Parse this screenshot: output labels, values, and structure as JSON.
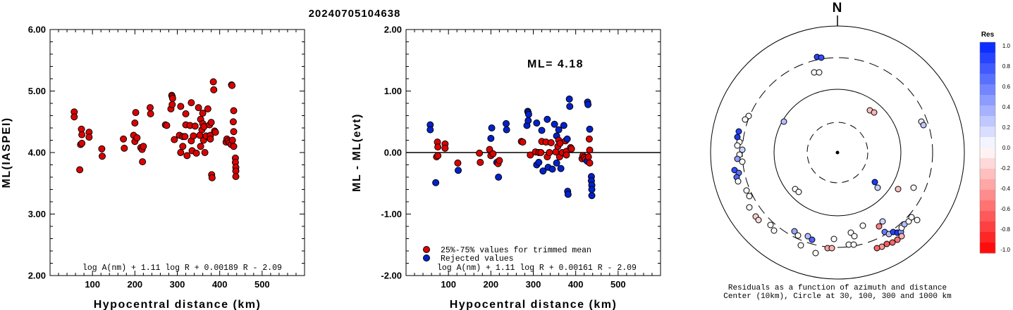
{
  "page_title": "20240705104638",
  "chart_data": [
    {
      "type": "scatter",
      "ylabel": "ML(IASPEI)",
      "xlabel": "Hypocentral distance (km)",
      "xlim": [
        0,
        600
      ],
      "ylim": [
        2.0,
        6.0
      ],
      "x_ticks": [
        "100",
        "200",
        "300",
        "400",
        "500"
      ],
      "y_ticks": [
        "2.00",
        "3.00",
        "4.00",
        "5.00",
        "6.00"
      ],
      "formula": "log A(nm) + 1.11 log R + 0.00189 R - 2.09",
      "point_color": "#dd0000",
      "points": [
        [
          57,
          4.66
        ],
        [
          57,
          4.58
        ],
        [
          70,
          3.72
        ],
        [
          72,
          4.13
        ],
        [
          74,
          4.38
        ],
        [
          75,
          4.15
        ],
        [
          75,
          4.29
        ],
        [
          92,
          4.33
        ],
        [
          92,
          4.25
        ],
        [
          122,
          4.06
        ],
        [
          123,
          3.94
        ],
        [
          173,
          4.22
        ],
        [
          175,
          4.07
        ],
        [
          197,
          4.28
        ],
        [
          200,
          4.18
        ],
        [
          200,
          4.48
        ],
        [
          202,
          4.65
        ],
        [
          205,
          4.24
        ],
        [
          214,
          4.08
        ],
        [
          217,
          4.05
        ],
        [
          218,
          3.85
        ],
        [
          220,
          4.1
        ],
        [
          236,
          4.73
        ],
        [
          237,
          4.63
        ],
        [
          272,
          4.45
        ],
        [
          275,
          4.44
        ],
        [
          285,
          4.71
        ],
        [
          287,
          4.93
        ],
        [
          288,
          4.91
        ],
        [
          288,
          4.78
        ],
        [
          289,
          4.88
        ],
        [
          293,
          4.21
        ],
        [
          305,
          4.28
        ],
        [
          308,
          4.75
        ],
        [
          308,
          4.0
        ],
        [
          313,
          4.26
        ],
        [
          313,
          4.1
        ],
        [
          318,
          4.26
        ],
        [
          320,
          4.45
        ],
        [
          320,
          4.63
        ],
        [
          323,
          3.95
        ],
        [
          330,
          4.44
        ],
        [
          333,
          4.81
        ],
        [
          333,
          4.19
        ],
        [
          335,
          4.03
        ],
        [
          338,
          4.27
        ],
        [
          342,
          4.43
        ],
        [
          345,
          3.99
        ],
        [
          350,
          4.73
        ],
        [
          353,
          4.28
        ],
        [
          355,
          4.1
        ],
        [
          355,
          4.54
        ],
        [
          358,
          4.37
        ],
        [
          360,
          4.64
        ],
        [
          360,
          4.47
        ],
        [
          362,
          4.2
        ],
        [
          363,
          4.42
        ],
        [
          365,
          4.0
        ],
        [
          368,
          4.27
        ],
        [
          372,
          4.71
        ],
        [
          376,
          4.45
        ],
        [
          378,
          4.28
        ],
        [
          378,
          4.22
        ],
        [
          380,
          4.49
        ],
        [
          381,
          3.64
        ],
        [
          382,
          3.59
        ],
        [
          385,
          5.15
        ],
        [
          386,
          5.02
        ],
        [
          388,
          4.35
        ],
        [
          390,
          4.33
        ],
        [
          415,
          4.17
        ],
        [
          417,
          4.22
        ],
        [
          420,
          4.19
        ],
        [
          423,
          4.16
        ],
        [
          427,
          4.13
        ],
        [
          428,
          5.1
        ],
        [
          429,
          5.09
        ],
        [
          430,
          4.2
        ],
        [
          432,
          4.5
        ],
        [
          433,
          4.68
        ],
        [
          433,
          4.34
        ],
        [
          433,
          4.1
        ],
        [
          437,
          3.91
        ],
        [
          437,
          3.84
        ],
        [
          438,
          3.76
        ],
        [
          438,
          3.7
        ],
        [
          438,
          3.61
        ]
      ]
    },
    {
      "type": "scatter",
      "ylabel": "ML - ML(evt)",
      "xlabel": "Hypocentral distance (km)",
      "xlim": [
        0,
        600
      ],
      "ylim": [
        -2.0,
        2.0
      ],
      "x_ticks": [
        "100",
        "200",
        "300",
        "400",
        "500"
      ],
      "y_ticks": [
        "-2.00",
        "-1.00",
        "0.00",
        "1.00",
        "2.00"
      ],
      "zero_line": 0.0,
      "annotation": "ML= 4.18",
      "legend": [
        {
          "label": "25%-75% values for trimmed mean",
          "color": "#dd0000"
        },
        {
          "label": "Rejected values",
          "color": "#0022cc"
        }
      ],
      "formula": "log A(nm) + 1.11 log R + 0.00161 R - 2.09",
      "points": [
        [
          57,
          0.45,
          "b"
        ],
        [
          57,
          0.37,
          "b"
        ],
        [
          70,
          -0.49,
          "b"
        ],
        [
          72,
          -0.07,
          "r"
        ],
        [
          74,
          0.17,
          "r"
        ],
        [
          75,
          0.09,
          "r"
        ],
        [
          75,
          -0.05,
          "r"
        ],
        [
          92,
          0.14,
          "r"
        ],
        [
          92,
          0.07,
          "r"
        ],
        [
          122,
          -0.17,
          "r"
        ],
        [
          123,
          -0.29,
          "b"
        ],
        [
          173,
          -0.01,
          "r"
        ],
        [
          175,
          -0.16,
          "r"
        ],
        [
          197,
          0.05,
          "r"
        ],
        [
          200,
          -0.05,
          "r"
        ],
        [
          200,
          0.23,
          "b"
        ],
        [
          202,
          0.4,
          "b"
        ],
        [
          205,
          -0.02,
          "r"
        ],
        [
          214,
          -0.16,
          "b"
        ],
        [
          217,
          -0.18,
          "r"
        ],
        [
          218,
          -0.4,
          "b"
        ],
        [
          220,
          -0.13,
          "r"
        ],
        [
          236,
          0.47,
          "b"
        ],
        [
          237,
          0.37,
          "b"
        ],
        [
          272,
          0.18,
          "r"
        ],
        [
          275,
          0.17,
          "r"
        ],
        [
          285,
          0.44,
          "b"
        ],
        [
          287,
          0.67,
          "b"
        ],
        [
          288,
          0.65,
          "b"
        ],
        [
          288,
          0.52,
          "b"
        ],
        [
          289,
          0.62,
          "b"
        ],
        [
          293,
          -0.04,
          "r"
        ],
        [
          305,
          0.01,
          "r"
        ],
        [
          308,
          0.48,
          "b"
        ],
        [
          308,
          -0.2,
          "b"
        ],
        [
          313,
          0.0,
          "r"
        ],
        [
          313,
          -0.16,
          "b"
        ],
        [
          318,
          0.0,
          "r"
        ],
        [
          320,
          0.18,
          "r"
        ],
        [
          320,
          0.36,
          "b"
        ],
        [
          323,
          -0.3,
          "b"
        ],
        [
          330,
          0.17,
          "r"
        ],
        [
          333,
          0.54,
          "b"
        ],
        [
          333,
          -0.07,
          "r"
        ],
        [
          335,
          -0.24,
          "b"
        ],
        [
          338,
          0.0,
          "r"
        ],
        [
          342,
          0.16,
          "r"
        ],
        [
          345,
          -0.27,
          "b"
        ],
        [
          350,
          0.46,
          "b"
        ],
        [
          353,
          0.01,
          "r"
        ],
        [
          355,
          -0.17,
          "b"
        ],
        [
          355,
          0.27,
          "b"
        ],
        [
          358,
          0.1,
          "r"
        ],
        [
          360,
          0.37,
          "b"
        ],
        [
          360,
          0.2,
          "r"
        ],
        [
          362,
          -0.07,
          "r"
        ],
        [
          363,
          0.15,
          "r"
        ],
        [
          365,
          -0.26,
          "b"
        ],
        [
          368,
          0.0,
          "r"
        ],
        [
          372,
          0.44,
          "b"
        ],
        [
          376,
          0.19,
          "r"
        ],
        [
          378,
          0.02,
          "r"
        ],
        [
          378,
          -0.04,
          "r"
        ],
        [
          380,
          0.22,
          "b"
        ],
        [
          381,
          -0.63,
          "b"
        ],
        [
          382,
          -0.68,
          "b"
        ],
        [
          385,
          0.87,
          "b"
        ],
        [
          386,
          0.75,
          "b"
        ],
        [
          388,
          0.08,
          "r"
        ],
        [
          390,
          0.06,
          "r"
        ],
        [
          415,
          -0.1,
          "r"
        ],
        [
          417,
          -0.05,
          "r"
        ],
        [
          420,
          -0.08,
          "r"
        ],
        [
          423,
          -0.11,
          "r"
        ],
        [
          427,
          -0.14,
          "b"
        ],
        [
          428,
          0.82,
          "b"
        ],
        [
          429,
          0.78,
          "b"
        ],
        [
          430,
          -0.07,
          "r"
        ],
        [
          432,
          0.22,
          "r"
        ],
        [
          433,
          0.38,
          "b"
        ],
        [
          433,
          0.04,
          "r"
        ],
        [
          433,
          -0.17,
          "r"
        ],
        [
          437,
          -0.39,
          "b"
        ],
        [
          437,
          -0.46,
          "b"
        ],
        [
          438,
          -0.53,
          "b"
        ],
        [
          438,
          -0.6,
          "b"
        ],
        [
          438,
          -0.7,
          "b"
        ]
      ]
    },
    {
      "type": "polar-scatter",
      "north_label": "N",
      "caption_line1": "Residuals as a function of azimuth and distance",
      "caption_line2": "Center (10km), Circle at 30, 100, 300 and 1000 km",
      "rings_km": [
        30,
        100,
        300,
        1000
      ],
      "colorbar_title": "Res",
      "colorbar_ticks": [
        "1.0",
        "0.8",
        "0.6",
        "0.4",
        "0.2",
        "0.0",
        "-0.2",
        "-0.4",
        "-0.6",
        "-0.8",
        "-1.0"
      ],
      "points": [
        [
          1159,
          81,
          0.85
        ],
        [
          1165,
          82,
          0.8
        ],
        [
          1155,
          103,
          0.0
        ],
        [
          1162,
          103,
          0.0
        ],
        [
          1234,
          157,
          -0.25
        ],
        [
          1240,
          160,
          -0.3
        ],
        [
          1307,
          173,
          0.1
        ],
        [
          1310,
          178,
          0.25
        ],
        [
          1062,
          165,
          0.0
        ],
        [
          1057,
          170,
          0.0
        ],
        [
          1112,
          173,
          0.3
        ],
        [
          1048,
          187,
          0.85
        ],
        [
          1046,
          195,
          0.9
        ],
        [
          1049,
          202,
          0.0
        ],
        [
          1046,
          207,
          0.0
        ],
        [
          1053,
          213,
          0.2
        ],
        [
          1049,
          220,
          0.0
        ],
        [
          1046,
          226,
          0.45
        ],
        [
          1053,
          230,
          0.0
        ],
        [
          1042,
          242,
          0.8
        ],
        [
          1048,
          246,
          0.65
        ],
        [
          1045,
          252,
          0.7
        ],
        [
          1047,
          258,
          0.0
        ],
        [
          1059,
          271,
          0.0
        ],
        [
          1063,
          279,
          0.0
        ],
        [
          1128,
          269,
          0.0
        ],
        [
          1133,
          273,
          0.0
        ],
        [
          1241,
          259,
          0.9
        ],
        [
          1245,
          267,
          0.2
        ],
        [
          1274,
          269,
          -0.25
        ],
        [
          1296,
          267,
          0.0
        ],
        [
          1063,
          295,
          0.0
        ],
        [
          1072,
          308,
          -0.2
        ],
        [
          1076,
          313,
          -0.15
        ],
        [
          1093,
          320,
          0.0
        ],
        [
          1098,
          328,
          0.0
        ],
        [
          1127,
          329,
          0.4
        ],
        [
          1132,
          335,
          0.0
        ],
        [
          1146,
          336,
          0.3
        ],
        [
          1152,
          341,
          0.7
        ],
        [
          1136,
          349,
          0.0
        ],
        [
          1183,
          340,
          0.0
        ],
        [
          1207,
          331,
          0.0
        ],
        [
          1212,
          336,
          0.0
        ],
        [
          1224,
          321,
          0.0
        ],
        [
          1247,
          322,
          -0.5
        ],
        [
          1252,
          315,
          0.2
        ],
        [
          1255,
          330,
          0.6
        ],
        [
          1261,
          333,
          0.3
        ],
        [
          1267,
          330,
          0.85
        ],
        [
          1273,
          331,
          0.9
        ],
        [
          1278,
          330,
          0.5
        ],
        [
          1279,
          324,
          0.0
        ],
        [
          1283,
          319,
          0.3
        ],
        [
          1289,
          315,
          0.0
        ],
        [
          1293,
          309,
          0.0
        ],
        [
          1301,
          313,
          0.0
        ],
        [
          1279,
          336,
          -0.3
        ],
        [
          1273,
          341,
          -0.55
        ],
        [
          1266,
          345,
          -0.6
        ],
        [
          1258,
          347,
          -0.65
        ],
        [
          1251,
          351,
          -0.4
        ],
        [
          1244,
          353,
          -0.6
        ],
        [
          1204,
          348,
          0.0
        ],
        [
          1211,
          348,
          0.0
        ],
        [
          1174,
          353,
          -0.35
        ],
        [
          1180,
          353,
          -0.3
        ],
        [
          1157,
          360,
          0.0
        ]
      ]
    }
  ]
}
